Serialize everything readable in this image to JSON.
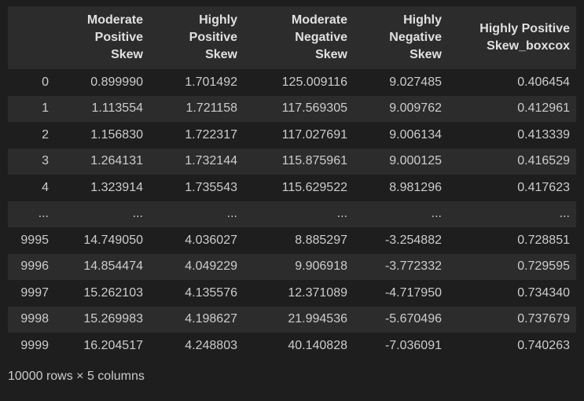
{
  "table": {
    "columns": [
      {
        "line1": "",
        "line2": "",
        "line3": ""
      },
      {
        "line1": "Moderate",
        "line2": "Positive",
        "line3": "Skew"
      },
      {
        "line1": "Highly",
        "line2": "Positive",
        "line3": "Skew"
      },
      {
        "line1": "Moderate",
        "line2": "Negative",
        "line3": "Skew"
      },
      {
        "line1": "Highly",
        "line2": "Negative",
        "line3": "Skew"
      },
      {
        "line1": "",
        "line2": "Highly Positive",
        "line3": "Skew_boxcox"
      }
    ],
    "rows": [
      [
        "0",
        "0.899990",
        "1.701492",
        "125.009116",
        "9.027485",
        "0.406454"
      ],
      [
        "1",
        "1.113554",
        "1.721158",
        "117.569305",
        "9.009762",
        "0.412961"
      ],
      [
        "2",
        "1.156830",
        "1.722317",
        "117.027691",
        "9.006134",
        "0.413339"
      ],
      [
        "3",
        "1.264131",
        "1.732144",
        "115.875961",
        "9.000125",
        "0.416529"
      ],
      [
        "4",
        "1.323914",
        "1.735543",
        "115.629522",
        "8.981296",
        "0.417623"
      ],
      [
        "...",
        "...",
        "...",
        "...",
        "...",
        "..."
      ],
      [
        "9995",
        "14.749050",
        "4.036027",
        "8.885297",
        "-3.254882",
        "0.728851"
      ],
      [
        "9996",
        "14.854474",
        "4.049229",
        "9.906918",
        "-3.772332",
        "0.729595"
      ],
      [
        "9997",
        "15.262103",
        "4.135576",
        "12.371089",
        "-4.717950",
        "0.734340"
      ],
      [
        "9998",
        "15.269983",
        "4.198627",
        "21.994536",
        "-5.670496",
        "0.737679"
      ],
      [
        "9999",
        "16.204517",
        "4.248803",
        "40.140828",
        "-7.036091",
        "0.740263"
      ]
    ]
  },
  "footer": {
    "summary": "10000 rows × 5 columns"
  }
}
